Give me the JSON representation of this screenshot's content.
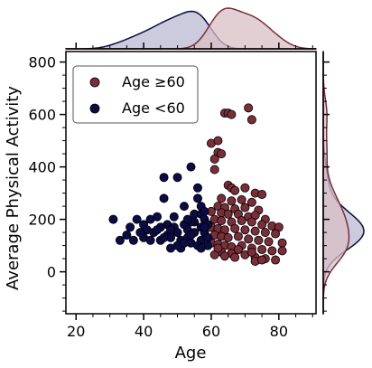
{
  "chart_data": {
    "type": "scatter",
    "xlabel": "Age",
    "ylabel": "Average Physical Activity",
    "xlim": [
      17,
      91
    ],
    "ylim": [
      -160,
      840
    ],
    "xticks": [
      20,
      40,
      60,
      80
    ],
    "yticks": [
      0,
      200,
      400,
      600,
      800
    ],
    "grid": false,
    "legend_position": "top-left",
    "marginals": "kde",
    "series": [
      {
        "name": "Age ≥60",
        "color": "#7a2e3a",
        "fill": "#d8bfc4",
        "points": [
          [
            60,
            490
          ],
          [
            62,
            500
          ],
          [
            62,
            455
          ],
          [
            63,
            450
          ],
          [
            61,
            430
          ],
          [
            61,
            390
          ],
          [
            64,
            605
          ],
          [
            65,
            605
          ],
          [
            66,
            600
          ],
          [
            71,
            625
          ],
          [
            72,
            580
          ],
          [
            65,
            330
          ],
          [
            66,
            320
          ],
          [
            67,
            310
          ],
          [
            70,
            320
          ],
          [
            73,
            300
          ],
          [
            75,
            295
          ],
          [
            63,
            280
          ],
          [
            66,
            270
          ],
          [
            69,
            275
          ],
          [
            72,
            265
          ],
          [
            62,
            250
          ],
          [
            64,
            245
          ],
          [
            67,
            240
          ],
          [
            70,
            245
          ],
          [
            74,
            235
          ],
          [
            60,
            230
          ],
          [
            63,
            225
          ],
          [
            65,
            220
          ],
          [
            68,
            220
          ],
          [
            71,
            210
          ],
          [
            73,
            215
          ],
          [
            76,
            200
          ],
          [
            61,
            200
          ],
          [
            63,
            195
          ],
          [
            66,
            190
          ],
          [
            69,
            195
          ],
          [
            72,
            190
          ],
          [
            75,
            180
          ],
          [
            78,
            175
          ],
          [
            80,
            170
          ],
          [
            60,
            170
          ],
          [
            62,
            165
          ],
          [
            64,
            160
          ],
          [
            67,
            165
          ],
          [
            70,
            160
          ],
          [
            73,
            155
          ],
          [
            76,
            150
          ],
          [
            79,
            145
          ],
          [
            61,
            140
          ],
          [
            63,
            135
          ],
          [
            65,
            130
          ],
          [
            68,
            135
          ],
          [
            71,
            125
          ],
          [
            74,
            120
          ],
          [
            77,
            115
          ],
          [
            81,
            110
          ],
          [
            60,
            110
          ],
          [
            62,
            105
          ],
          [
            64,
            100
          ],
          [
            66,
            95
          ],
          [
            69,
            100
          ],
          [
            72,
            90
          ],
          [
            75,
            85
          ],
          [
            78,
            80
          ],
          [
            81,
            80
          ],
          [
            63,
            75
          ],
          [
            66,
            70
          ],
          [
            70,
            65
          ],
          [
            73,
            55
          ],
          [
            76,
            50
          ],
          [
            79,
            45
          ],
          [
            73,
            40
          ],
          [
            75,
            45
          ],
          [
            67,
            55
          ],
          [
            64,
            60
          ],
          [
            61,
            65
          ],
          [
            62,
            90
          ],
          [
            68,
            85
          ],
          [
            72,
            75
          ]
        ]
      },
      {
        "name": "Age <60",
        "color": "#0b0b45",
        "fill": "#b9b9d2",
        "points": [
          [
            31,
            200
          ],
          [
            33,
            120
          ],
          [
            35,
            140
          ],
          [
            36,
            170
          ],
          [
            37,
            120
          ],
          [
            38,
            200
          ],
          [
            40,
            130
          ],
          [
            41,
            160
          ],
          [
            42,
            200
          ],
          [
            43,
            150
          ],
          [
            44,
            210
          ],
          [
            45,
            170
          ],
          [
            45,
            120
          ],
          [
            46,
            360
          ],
          [
            46,
            280
          ],
          [
            47,
            180
          ],
          [
            47,
            140
          ],
          [
            48,
            130
          ],
          [
            48,
            90
          ],
          [
            49,
            210
          ],
          [
            49,
            170
          ],
          [
            50,
            360
          ],
          [
            50,
            150
          ],
          [
            51,
            120
          ],
          [
            51,
            90
          ],
          [
            52,
            250
          ],
          [
            52,
            180
          ],
          [
            53,
            160
          ],
          [
            53,
            130
          ],
          [
            54,
            400
          ],
          [
            54,
            110
          ],
          [
            55,
            220
          ],
          [
            55,
            190
          ],
          [
            55,
            150
          ],
          [
            56,
            320
          ],
          [
            56,
            280
          ],
          [
            57,
            250
          ],
          [
            57,
            220
          ],
          [
            57,
            170
          ],
          [
            57,
            120
          ],
          [
            58,
            200
          ],
          [
            58,
            150
          ],
          [
            59,
            180
          ],
          [
            59,
            130
          ],
          [
            59,
            100
          ],
          [
            58,
            230
          ],
          [
            56,
            100
          ],
          [
            54,
            190
          ],
          [
            53,
            200
          ],
          [
            50,
            100
          ],
          [
            48,
            160
          ],
          [
            46,
            130
          ],
          [
            44,
            160
          ],
          [
            42,
            120
          ],
          [
            40,
            180
          ],
          [
            39,
            150
          ],
          [
            52,
            110
          ],
          [
            54,
            140
          ],
          [
            58,
            170
          ],
          [
            57,
            90
          ]
        ]
      }
    ]
  }
}
